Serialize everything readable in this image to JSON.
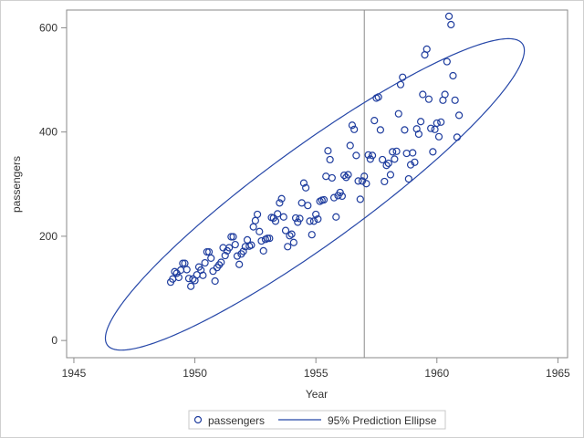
{
  "chart_data": {
    "type": "scatter",
    "title": "",
    "xlabel": "Year",
    "ylabel": "passengers",
    "xlim": [
      1944.7,
      1965.4
    ],
    "ylim": [
      -33,
      634
    ],
    "xticks": [
      1945,
      1950,
      1955,
      1960,
      1965
    ],
    "yticks": [
      0,
      200,
      400,
      600
    ],
    "reference_line_x": 1957,
    "grid": false,
    "legend_placement": "bottom",
    "legend": [
      "passengers",
      "95% Prediction Ellipse"
    ],
    "series": [
      {
        "name": "passengers",
        "x_start": 1949,
        "x_step": 0.08333333,
        "values": [
          112,
          118,
          132,
          129,
          121,
          135,
          148,
          148,
          136,
          119,
          104,
          118,
          115,
          126,
          141,
          135,
          125,
          149,
          170,
          170,
          158,
          133,
          114,
          140,
          145,
          150,
          178,
          163,
          172,
          178,
          199,
          199,
          184,
          162,
          146,
          166,
          171,
          180,
          193,
          181,
          183,
          218,
          230,
          242,
          209,
          191,
          172,
          194,
          196,
          196,
          236,
          235,
          229,
          243,
          264,
          272,
          237,
          211,
          180,
          201,
          204,
          188,
          235,
          227,
          234,
          264,
          302,
          293,
          259,
          229,
          203,
          229,
          242,
          233,
          267,
          269,
          270,
          315,
          364,
          347,
          312,
          274,
          237,
          278,
          284,
          277,
          317,
          313,
          318,
          374,
          413,
          405,
          355,
          306,
          271,
          306,
          315,
          301,
          356,
          348,
          355,
          422,
          465,
          467,
          404,
          347,
          305,
          336,
          340,
          318,
          362,
          348,
          363,
          435,
          491,
          505,
          404,
          359,
          310,
          337,
          360,
          342,
          406,
          396,
          420,
          472,
          548,
          559,
          463,
          407,
          362,
          405,
          417,
          391,
          419,
          461,
          472,
          535,
          622,
          606,
          508,
          461,
          390,
          432
        ]
      }
    ],
    "ellipse": {
      "name": "95% Prediction Ellipse",
      "level": 0.95,
      "mean_x": 1954.958,
      "mean_y": 280.3,
      "sd_x": 3.476,
      "sd_y": 119.97,
      "corr": 0.924,
      "scale": 2.49
    },
    "colors": {
      "marker": "#1f3d9e",
      "ellipse": "#2647a8",
      "axis": "#8a8a8a",
      "refline": "#8a8a8a"
    }
  }
}
